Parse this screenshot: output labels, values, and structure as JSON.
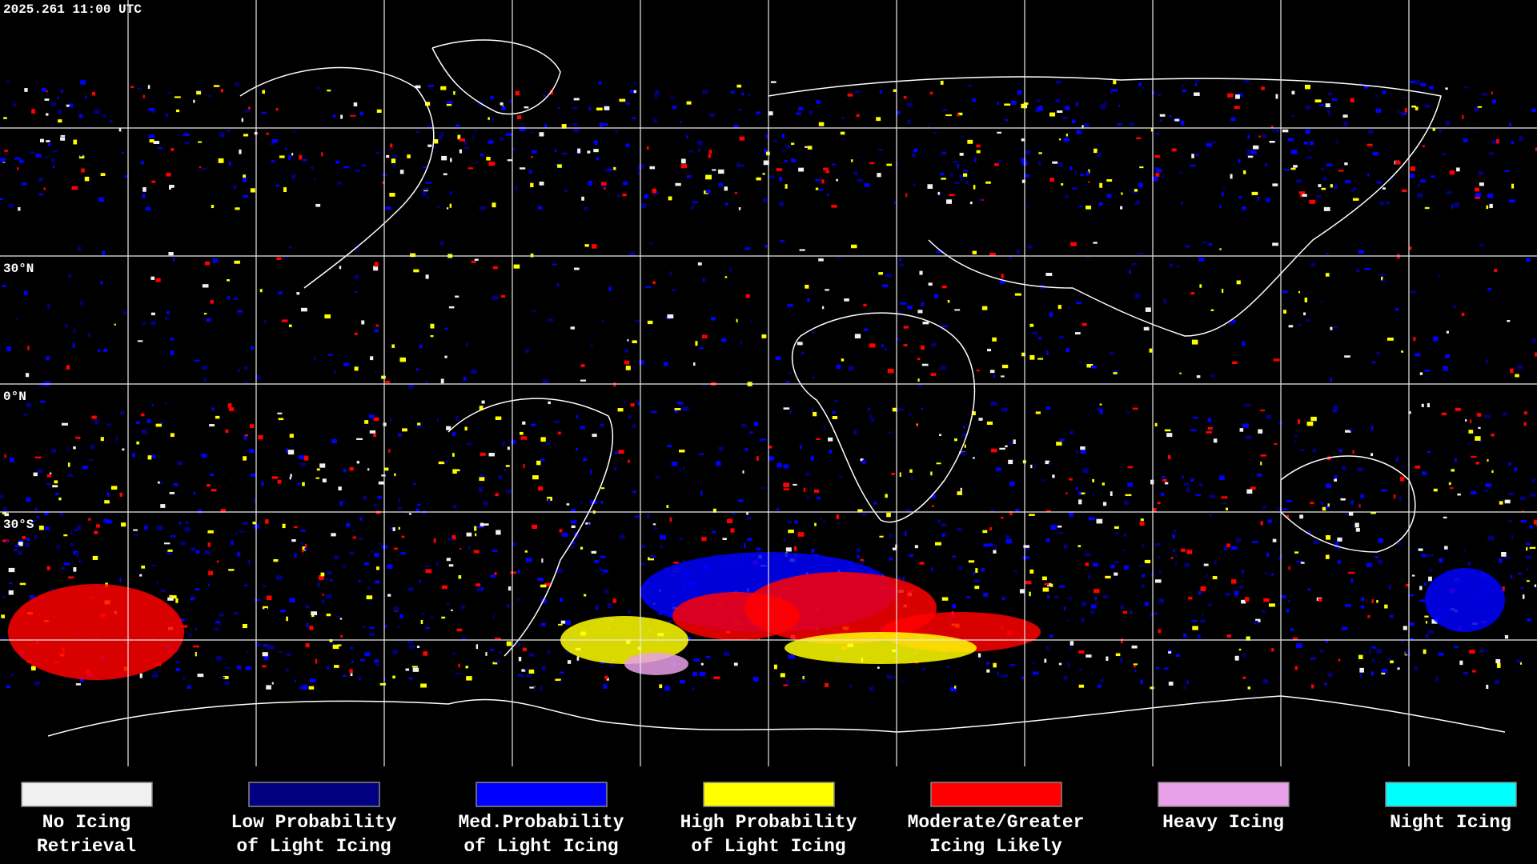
{
  "header": {
    "timestamp": "2025.261 11:00 UTC"
  },
  "latitude_labels": [
    "30°N",
    "0°N",
    "30°S"
  ],
  "legend": [
    {
      "color": "#f0f0f0",
      "lines": [
        "No Icing",
        "Retrieval"
      ]
    },
    {
      "color": "#000080",
      "lines": [
        "Low Probability",
        "of Light Icing"
      ]
    },
    {
      "color": "#0000ff",
      "lines": [
        "Med.Probability",
        "of Light Icing"
      ]
    },
    {
      "color": "#ffff00",
      "lines": [
        "High Probability",
        "of Light Icing"
      ]
    },
    {
      "color": "#ff0000",
      "lines": [
        "Moderate/Greater",
        "Icing Likely"
      ]
    },
    {
      "color": "#e8a0e8",
      "lines": [
        "Heavy Icing"
      ]
    },
    {
      "color": "#00ffff",
      "lines": [
        "Night Icing"
      ]
    }
  ]
}
